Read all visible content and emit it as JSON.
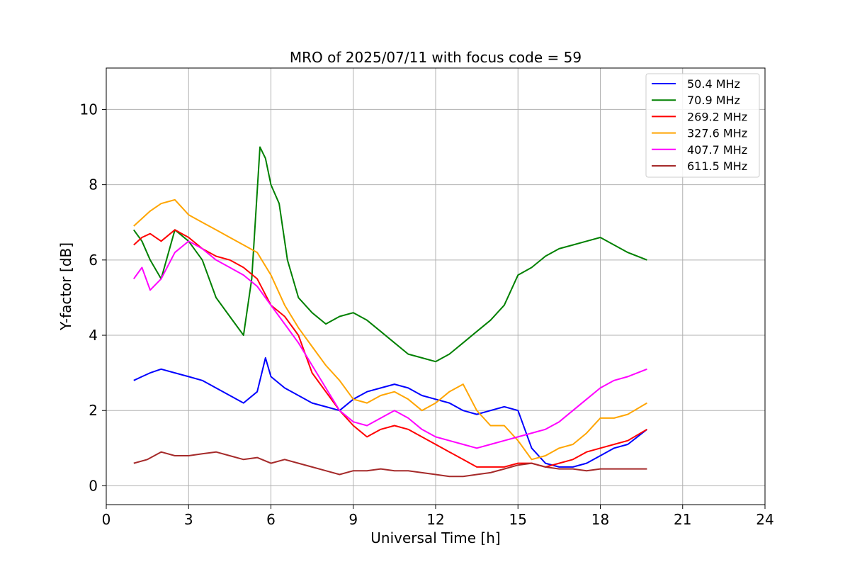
{
  "chart_data": {
    "type": "line",
    "title": "MRO of 2025/07/11 with focus code = 59",
    "xlabel": "Universal Time [h]",
    "ylabel": "Y-factor [dB]",
    "xlim": [
      0,
      24
    ],
    "ylim": [
      -0.5,
      11.1
    ],
    "xticks": [
      0,
      3,
      6,
      9,
      12,
      15,
      18,
      21,
      24
    ],
    "yticks": [
      0,
      2,
      4,
      6,
      8,
      10
    ],
    "grid": true,
    "legend_position": "top-right",
    "series": [
      {
        "name": " 50.4 MHz",
        "color": "#0000ff",
        "x": [
          1.0,
          1.3,
          1.6,
          2.0,
          2.5,
          3.0,
          3.5,
          4.0,
          4.5,
          5.0,
          5.5,
          5.8,
          6.0,
          6.5,
          7.0,
          7.5,
          8.0,
          8.5,
          9.0,
          9.5,
          10.0,
          10.5,
          11.0,
          11.5,
          12.0,
          12.5,
          13.0,
          13.5,
          14.0,
          14.5,
          15.0,
          15.5,
          16.0,
          16.5,
          17.0,
          17.5,
          18.0,
          18.5,
          19.0,
          19.7
        ],
        "y": [
          2.8,
          2.9,
          3.0,
          3.1,
          3.0,
          2.9,
          2.8,
          2.6,
          2.4,
          2.2,
          2.5,
          3.4,
          2.9,
          2.6,
          2.4,
          2.2,
          2.1,
          2.0,
          2.3,
          2.5,
          2.6,
          2.7,
          2.6,
          2.4,
          2.3,
          2.2,
          2.0,
          1.9,
          2.0,
          2.1,
          2.0,
          1.0,
          0.6,
          0.5,
          0.5,
          0.6,
          0.8,
          1.0,
          1.1,
          1.5
        ]
      },
      {
        "name": " 70.9 MHz",
        "color": "#008000",
        "x": [
          1.0,
          1.3,
          1.6,
          2.0,
          2.5,
          3.0,
          3.5,
          4.0,
          4.5,
          5.0,
          5.3,
          5.6,
          5.8,
          6.0,
          6.3,
          6.6,
          7.0,
          7.5,
          8.0,
          8.5,
          9.0,
          9.5,
          10.0,
          10.5,
          11.0,
          11.5,
          12.0,
          12.5,
          13.0,
          13.5,
          14.0,
          14.5,
          15.0,
          15.5,
          16.0,
          16.5,
          17.0,
          17.5,
          18.0,
          18.5,
          19.0,
          19.7
        ],
        "y": [
          6.8,
          6.5,
          6.0,
          5.5,
          6.8,
          6.5,
          6.0,
          5.0,
          4.5,
          4.0,
          5.5,
          9.0,
          8.7,
          8.0,
          7.5,
          6.0,
          5.0,
          4.6,
          4.3,
          4.5,
          4.6,
          4.4,
          4.1,
          3.8,
          3.5,
          3.4,
          3.3,
          3.5,
          3.8,
          4.1,
          4.4,
          4.8,
          5.6,
          5.8,
          6.1,
          6.3,
          6.4,
          6.5,
          6.6,
          6.4,
          6.2,
          6.0
        ]
      },
      {
        "name": "269.2 MHz",
        "color": "#ff0000",
        "x": [
          1.0,
          1.3,
          1.6,
          2.0,
          2.5,
          3.0,
          3.5,
          4.0,
          4.5,
          5.0,
          5.5,
          6.0,
          6.5,
          7.0,
          7.5,
          8.0,
          8.5,
          9.0,
          9.5,
          10.0,
          10.5,
          11.0,
          11.5,
          12.0,
          12.5,
          13.0,
          13.5,
          14.0,
          14.5,
          15.0,
          15.5,
          16.0,
          16.5,
          17.0,
          17.5,
          18.0,
          18.5,
          19.0,
          19.7
        ],
        "y": [
          6.4,
          6.6,
          6.7,
          6.5,
          6.8,
          6.6,
          6.3,
          6.1,
          6.0,
          5.8,
          5.5,
          4.8,
          4.5,
          4.0,
          3.0,
          2.5,
          2.0,
          1.6,
          1.3,
          1.5,
          1.6,
          1.5,
          1.3,
          1.1,
          0.9,
          0.7,
          0.5,
          0.5,
          0.5,
          0.6,
          0.6,
          0.5,
          0.6,
          0.7,
          0.9,
          1.0,
          1.1,
          1.2,
          1.5
        ]
      },
      {
        "name": "327.6 MHz",
        "color": "#ffa500",
        "x": [
          1.0,
          1.3,
          1.6,
          2.0,
          2.5,
          3.0,
          3.5,
          4.0,
          4.5,
          5.0,
          5.5,
          6.0,
          6.5,
          7.0,
          7.5,
          8.0,
          8.5,
          9.0,
          9.5,
          10.0,
          10.5,
          11.0,
          11.5,
          12.0,
          12.5,
          13.0,
          13.5,
          14.0,
          14.5,
          15.0,
          15.5,
          16.0,
          16.5,
          17.0,
          17.5,
          18.0,
          18.5,
          19.0,
          19.7
        ],
        "y": [
          6.9,
          7.1,
          7.3,
          7.5,
          7.6,
          7.2,
          7.0,
          6.8,
          6.6,
          6.4,
          6.2,
          5.6,
          4.8,
          4.2,
          3.7,
          3.2,
          2.8,
          2.3,
          2.2,
          2.4,
          2.5,
          2.3,
          2.0,
          2.2,
          2.5,
          2.7,
          2.0,
          1.6,
          1.6,
          1.2,
          0.7,
          0.8,
          1.0,
          1.1,
          1.4,
          1.8,
          1.8,
          1.9,
          2.2
        ]
      },
      {
        "name": "407.7 MHz",
        "color": "#ff00ff",
        "x": [
          1.0,
          1.3,
          1.6,
          2.0,
          2.5,
          3.0,
          3.5,
          4.0,
          4.5,
          5.0,
          5.5,
          6.0,
          6.5,
          7.0,
          7.5,
          8.0,
          8.5,
          9.0,
          9.5,
          10.0,
          10.5,
          11.0,
          11.5,
          12.0,
          12.5,
          13.0,
          13.5,
          14.0,
          14.5,
          15.0,
          15.5,
          16.0,
          16.5,
          17.0,
          17.5,
          18.0,
          18.5,
          19.0,
          19.7
        ],
        "y": [
          5.5,
          5.8,
          5.2,
          5.5,
          6.2,
          6.5,
          6.3,
          6.0,
          5.8,
          5.6,
          5.3,
          4.8,
          4.3,
          3.8,
          3.2,
          2.6,
          2.0,
          1.7,
          1.6,
          1.8,
          2.0,
          1.8,
          1.5,
          1.3,
          1.2,
          1.1,
          1.0,
          1.1,
          1.2,
          1.3,
          1.4,
          1.5,
          1.7,
          2.0,
          2.3,
          2.6,
          2.8,
          2.9,
          3.1
        ]
      },
      {
        "name": "611.5 MHz",
        "color": "#a52a2a",
        "x": [
          1.0,
          1.5,
          2.0,
          2.5,
          3.0,
          3.5,
          4.0,
          4.5,
          5.0,
          5.5,
          6.0,
          6.5,
          7.0,
          7.5,
          8.0,
          8.5,
          9.0,
          9.5,
          10.0,
          10.5,
          11.0,
          11.5,
          12.0,
          12.5,
          13.0,
          13.5,
          14.0,
          14.5,
          15.0,
          15.5,
          16.0,
          16.5,
          17.0,
          17.5,
          18.0,
          18.5,
          19.0,
          19.7
        ],
        "y": [
          0.6,
          0.7,
          0.9,
          0.8,
          0.8,
          0.85,
          0.9,
          0.8,
          0.7,
          0.75,
          0.6,
          0.7,
          0.6,
          0.5,
          0.4,
          0.3,
          0.4,
          0.4,
          0.45,
          0.4,
          0.4,
          0.35,
          0.3,
          0.25,
          0.25,
          0.3,
          0.35,
          0.45,
          0.55,
          0.6,
          0.5,
          0.45,
          0.45,
          0.4,
          0.45,
          0.45,
          0.45,
          0.45
        ]
      }
    ]
  }
}
